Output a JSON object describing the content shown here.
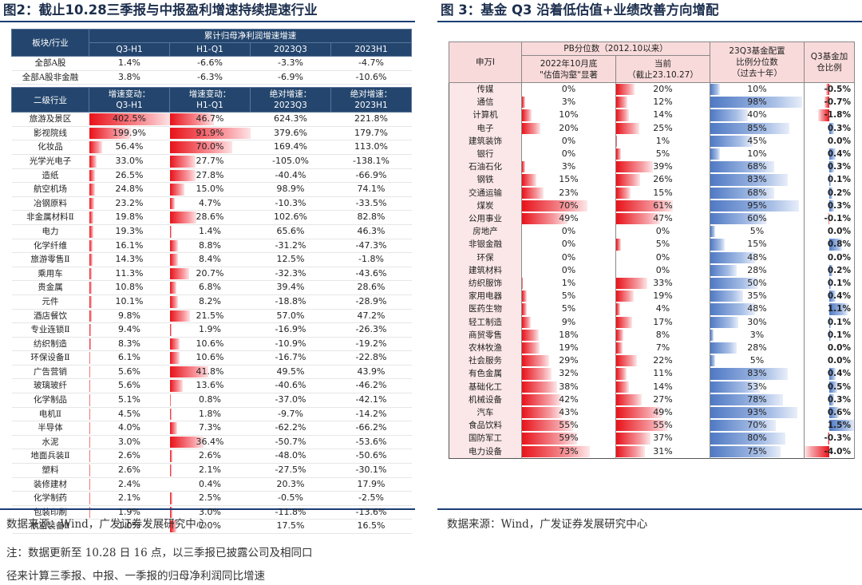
{
  "left": {
    "title": "图2：截止10.28三季报与中报盈利增速持续提速行业",
    "header1": {
      "col0": "板块/行业",
      "span": "累计归母净利润增速增速",
      "cols": [
        "Q3-H1",
        "H1-Q1",
        "2023Q3",
        "2023H1"
      ]
    },
    "top_rows": [
      {
        "name": "全部A股",
        "v": [
          "1.4%",
          "-6.6%",
          "-3.3%",
          "-4.7%"
        ]
      },
      {
        "name": "全部A股非金融",
        "v": [
          "3.8%",
          "-6.3%",
          "-6.9%",
          "-10.6%"
        ]
      }
    ],
    "header2": {
      "col0": "二级行业",
      "cols": [
        "增速变动：\nQ3-H1",
        "增速变动：\nH1-Q1",
        "绝对增速：\n2023Q3",
        "绝对增速：\n2023H1"
      ]
    },
    "rows": [
      {
        "name": "旅游及景区",
        "v": [
          "402.5%",
          "46.7%",
          "624.3%",
          "221.8%"
        ],
        "b1": 1.0,
        "b2": 0.55
      },
      {
        "name": "影视院线",
        "v": [
          "199.9%",
          "91.9%",
          "379.6%",
          "179.7%"
        ],
        "b1": 0.52,
        "b2": 1.0
      },
      {
        "name": "化妆品",
        "v": [
          "56.4%",
          "70.0%",
          "169.4%",
          "113.0%"
        ],
        "b1": 0.16,
        "b2": 0.78
      },
      {
        "name": "光学光电子",
        "v": [
          "33.0%",
          "27.7%",
          "-105.0%",
          "-138.1%"
        ],
        "b1": 0.09,
        "b2": 0.32
      },
      {
        "name": "造纸",
        "v": [
          "26.5%",
          "27.8%",
          "-40.4%",
          "-66.9%"
        ],
        "b1": 0.07,
        "b2": 0.32
      },
      {
        "name": "航空机场",
        "v": [
          "24.8%",
          "15.0%",
          "98.9%",
          "74.1%"
        ],
        "b1": 0.07,
        "b2": 0.18
      },
      {
        "name": "冶钢原料",
        "v": [
          "23.2%",
          "4.7%",
          "-10.3%",
          "-33.5%"
        ],
        "b1": 0.06,
        "b2": 0.06
      },
      {
        "name": "非金属材料Ⅱ",
        "v": [
          "19.8%",
          "28.6%",
          "102.6%",
          "82.8%"
        ],
        "b1": 0.05,
        "b2": 0.33
      },
      {
        "name": "电力",
        "v": [
          "19.3%",
          "1.4%",
          "65.6%",
          "46.3%"
        ],
        "b1": 0.05,
        "b2": 0.02
      },
      {
        "name": "化学纤维",
        "v": [
          "16.1%",
          "8.8%",
          "-31.2%",
          "-47.3%"
        ],
        "b1": 0.04,
        "b2": 0.1
      },
      {
        "name": "旅游零售Ⅱ",
        "v": [
          "14.3%",
          "8.4%",
          "12.5%",
          "-1.8%"
        ],
        "b1": 0.04,
        "b2": 0.1
      },
      {
        "name": "乘用车",
        "v": [
          "11.3%",
          "20.7%",
          "-32.3%",
          "-43.6%"
        ],
        "b1": 0.03,
        "b2": 0.24
      },
      {
        "name": "贵金属",
        "v": [
          "10.8%",
          "6.8%",
          "39.4%",
          "28.6%"
        ],
        "b1": 0.03,
        "b2": 0.08
      },
      {
        "name": "元件",
        "v": [
          "10.1%",
          "8.2%",
          "-18.8%",
          "-28.9%"
        ],
        "b1": 0.03,
        "b2": 0.1
      },
      {
        "name": "酒店餐饮",
        "v": [
          "9.8%",
          "21.5%",
          "57.0%",
          "47.2%"
        ],
        "b1": 0.03,
        "b2": 0.25
      },
      {
        "name": "专业连锁Ⅱ",
        "v": [
          "9.4%",
          "1.9%",
          "-16.9%",
          "-26.3%"
        ],
        "b1": 0.025,
        "b2": 0.02
      },
      {
        "name": "纺织制造",
        "v": [
          "8.3%",
          "10.6%",
          "-10.9%",
          "-19.2%"
        ],
        "b1": 0.022,
        "b2": 0.12
      },
      {
        "name": "环保设备Ⅱ",
        "v": [
          "6.1%",
          "10.6%",
          "-16.7%",
          "-22.8%"
        ],
        "b1": 0.018,
        "b2": 0.12
      },
      {
        "name": "广告营销",
        "v": [
          "5.6%",
          "41.8%",
          "49.5%",
          "43.9%"
        ],
        "b1": 0.016,
        "b2": 0.48
      },
      {
        "name": "玻璃玻纤",
        "v": [
          "5.6%",
          "13.6%",
          "-40.6%",
          "-46.2%"
        ],
        "b1": 0.016,
        "b2": 0.16
      },
      {
        "name": "化学制品",
        "v": [
          "5.1%",
          "0.8%",
          "-37.0%",
          "-42.1%"
        ],
        "b1": 0.014,
        "b2": 0.01
      },
      {
        "name": "电机Ⅱ",
        "v": [
          "4.5%",
          "1.8%",
          "-9.7%",
          "-14.2%"
        ],
        "b1": 0.012,
        "b2": 0.02
      },
      {
        "name": "半导体",
        "v": [
          "4.0%",
          "7.3%",
          "-62.2%",
          "-66.2%"
        ],
        "b1": 0.011,
        "b2": 0.09
      },
      {
        "name": "水泥",
        "v": [
          "3.0%",
          "36.4%",
          "-50.7%",
          "-53.6%"
        ],
        "b1": 0.009,
        "b2": 0.42
      },
      {
        "name": "地面兵装Ⅱ",
        "v": [
          "2.6%",
          "2.6%",
          "-48.0%",
          "-50.6%"
        ],
        "b1": 0.008,
        "b2": 0.03
      },
      {
        "name": "塑料",
        "v": [
          "2.6%",
          "2.1%",
          "-27.5%",
          "-30.1%"
        ],
        "b1": 0.008,
        "b2": 0.025
      },
      {
        "name": "装修建材",
        "v": [
          "2.4%",
          "0.4%",
          "20.3%",
          "17.9%"
        ],
        "b1": 0.007,
        "b2": 0.005
      },
      {
        "name": "化学制药",
        "v": [
          "2.1%",
          "2.5%",
          "-0.5%",
          "-2.5%"
        ],
        "b1": 0.006,
        "b2": 0.03
      },
      {
        "name": "包装印刷",
        "v": [
          "1.9%",
          "3.0%",
          "-11.8%",
          "-13.6%"
        ],
        "b1": 0.006,
        "b2": 0.035
      },
      {
        "name": "航空装备Ⅱ",
        "v": [
          "1.0%",
          "7.0%",
          "17.5%",
          "16.5%"
        ],
        "b1": 0.004,
        "b2": 0.08
      }
    ],
    "source": "数据来源：Wind，广发证券发展研究中心",
    "note1": "注：数据更新至 10.28 日 16 点，以三季报已披露公司及相同口",
    "note2": "径来计算三季报、中报、一季报的归母净利润同比增速"
  },
  "right": {
    "title": "图 3：基金 Q3 沿着低估值+业绩改善方向增配",
    "header": {
      "col0": "申万I",
      "pb_span": "PB分位数（2012.10以来）",
      "pb1": "2022年10月底\n\"估值沟壑\"显著",
      "pb2": "当前\n（截止23.10.27）",
      "fund": "23Q3基金配置\n比例分位数\n（过去十年）",
      "add": "Q3基金加\n仓比例"
    },
    "rows": [
      {
        "name": "传媒",
        "pb1": "0%",
        "pb2": "20%",
        "fund": "10%",
        "add": "-0.5%",
        "a": -0.12
      },
      {
        "name": "通信",
        "pb1": "3%",
        "pb2": "12%",
        "fund": "98%",
        "add": "-0.7%",
        "a": -0.18
      },
      {
        "name": "计算机",
        "pb1": "10%",
        "pb2": "14%",
        "fund": "40%",
        "add": "-1.8%",
        "a": -0.45
      },
      {
        "name": "电子",
        "pb1": "20%",
        "pb2": "25%",
        "fund": "85%",
        "add": "0.3%",
        "a": 0.2
      },
      {
        "name": "建筑装饰",
        "pb1": "0%",
        "pb2": "1%",
        "fund": "45%",
        "add": "0.0%",
        "a": 0
      },
      {
        "name": "银行",
        "pb1": "0%",
        "pb2": "5%",
        "fund": "10%",
        "add": "0.4%",
        "a": 0.27
      },
      {
        "name": "石油石化",
        "pb1": "3%",
        "pb2": "39%",
        "fund": "68%",
        "add": "0.3%",
        "a": 0.2
      },
      {
        "name": "钢铁",
        "pb1": "15%",
        "pb2": "26%",
        "fund": "83%",
        "add": "0.1%",
        "a": 0.07
      },
      {
        "name": "交通运输",
        "pb1": "23%",
        "pb2": "15%",
        "fund": "68%",
        "add": "0.2%",
        "a": 0.13
      },
      {
        "name": "煤炭",
        "pb1": "70%",
        "pb2": "61%",
        "fund": "95%",
        "add": "0.3%",
        "a": 0.2
      },
      {
        "name": "公用事业",
        "pb1": "49%",
        "pb2": "47%",
        "fund": "60%",
        "add": "-0.1%",
        "a": -0.03
      },
      {
        "name": "房地产",
        "pb1": "0%",
        "pb2": "0%",
        "fund": "5%",
        "add": "0.0%",
        "a": 0
      },
      {
        "name": "非银金融",
        "pb1": "0%",
        "pb2": "5%",
        "fund": "15%",
        "add": "0.8%",
        "a": 0.53
      },
      {
        "name": "环保",
        "pb1": "0%",
        "pb2": "0%",
        "fund": "48%",
        "add": "0.0%",
        "a": 0
      },
      {
        "name": "建筑材料",
        "pb1": "0%",
        "pb2": "0%",
        "fund": "28%",
        "add": "0.2%",
        "a": 0.13
      },
      {
        "name": "纺织服饰",
        "pb1": "1%",
        "pb2": "33%",
        "fund": "50%",
        "add": "0.1%",
        "a": 0.07
      },
      {
        "name": "家用电器",
        "pb1": "5%",
        "pb2": "19%",
        "fund": "35%",
        "add": "0.4%",
        "a": 0.27
      },
      {
        "name": "医药生物",
        "pb1": "5%",
        "pb2": "4%",
        "fund": "48%",
        "add": "1.1%",
        "a": 0.73
      },
      {
        "name": "轻工制造",
        "pb1": "9%",
        "pb2": "17%",
        "fund": "30%",
        "add": "0.1%",
        "a": 0.07
      },
      {
        "name": "商贸零售",
        "pb1": "18%",
        "pb2": "8%",
        "fund": "3%",
        "add": "0.1%",
        "a": 0.07
      },
      {
        "name": "农林牧渔",
        "pb1": "19%",
        "pb2": "7%",
        "fund": "28%",
        "add": "0.0%",
        "a": 0
      },
      {
        "name": "社会服务",
        "pb1": "29%",
        "pb2": "22%",
        "fund": "5%",
        "add": "0.0%",
        "a": 0
      },
      {
        "name": "有色金属",
        "pb1": "32%",
        "pb2": "11%",
        "fund": "83%",
        "add": "0.4%",
        "a": 0.27
      },
      {
        "name": "基础化工",
        "pb1": "38%",
        "pb2": "14%",
        "fund": "53%",
        "add": "0.5%",
        "a": 0.33
      },
      {
        "name": "机械设备",
        "pb1": "42%",
        "pb2": "27%",
        "fund": "78%",
        "add": "0.3%",
        "a": 0.2
      },
      {
        "name": "汽车",
        "pb1": "43%",
        "pb2": "49%",
        "fund": "93%",
        "add": "0.6%",
        "a": 0.4
      },
      {
        "name": "食品饮料",
        "pb1": "55%",
        "pb2": "55%",
        "fund": "70%",
        "add": "1.5%",
        "a": 1.0
      },
      {
        "name": "国防军工",
        "pb1": "59%",
        "pb2": "37%",
        "fund": "80%",
        "add": "-0.3%",
        "a": -0.08
      },
      {
        "name": "电力设备",
        "pb1": "73%",
        "pb2": "31%",
        "fund": "75%",
        "add": "-4.0%",
        "a": -1.0
      }
    ],
    "source": "数据来源：Wind，广发证券发展研究中心"
  }
}
